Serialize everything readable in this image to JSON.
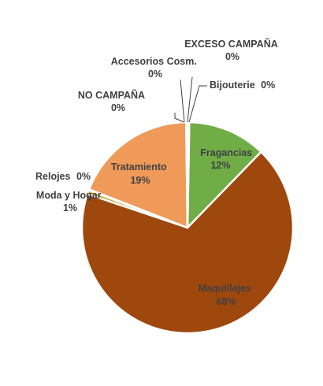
{
  "chart_data": {
    "type": "pie",
    "title": "",
    "slices": [
      {
        "name": "Fragancias",
        "value_label": "12%",
        "value": 12,
        "color": "#70ad47"
      },
      {
        "name": "Maquillajes",
        "value_label": "68%",
        "value": 68,
        "color": "#9e480e"
      },
      {
        "name": "Moda y Hogar",
        "value_label": "1%",
        "value": 0.6,
        "color": "#c9a227"
      },
      {
        "name": "Relojes",
        "value_label": "0%",
        "value": 0.15,
        "color": "#f5c38f"
      },
      {
        "name": "Tratamiento",
        "value_label": "19%",
        "value": 18.9,
        "color": "#f09a5a"
      },
      {
        "name": "NO CAMPAÑA",
        "value_label": "0%",
        "value": 0.12,
        "color": "#f4b183"
      },
      {
        "name": "Accesorios Cosm.",
        "value_label": "0%",
        "value": 0.12,
        "color": "#ffd966"
      },
      {
        "name": "EXCESO CAMPAÑA",
        "value_label": "0%",
        "value": 0.12,
        "color": "#a9d18e"
      },
      {
        "name": "Bijouterie",
        "value_label": "0%",
        "value": 0.12,
        "color": "#548235"
      }
    ],
    "legend": "none",
    "data_labels": "name and percent, outside with leader lines for small slices"
  }
}
